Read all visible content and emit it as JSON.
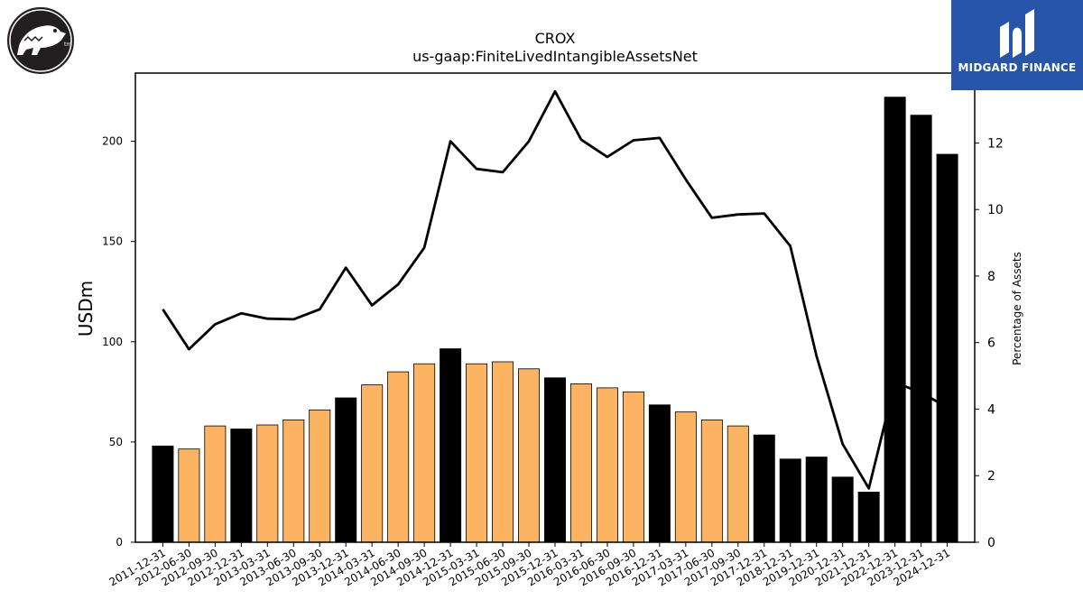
{
  "header": {
    "company": "CROX",
    "metric": "us-gaap:FiniteLivedIntangibleAssetsNet"
  },
  "brand": {
    "name": "MIDGARD FINANCE",
    "color": "#2855a7",
    "logo_left_icon": "crocodile-logo-icon",
    "logo_right_icon": "midgard-m-icon"
  },
  "chart_data": {
    "type": "bar",
    "categories": [
      "2011-12-31",
      "2012-06-30",
      "2012-09-30",
      "2012-12-31",
      "2013-03-31",
      "2013-06-30",
      "2013-09-30",
      "2013-12-31",
      "2014-03-31",
      "2014-06-30",
      "2014-09-30",
      "2014-12-31",
      "2015-03-31",
      "2015-06-30",
      "2015-09-30",
      "2015-12-31",
      "2016-03-31",
      "2016-06-30",
      "2016-09-30",
      "2016-12-31",
      "2017-03-31",
      "2017-06-30",
      "2017-09-30",
      "2017-12-31",
      "2018-12-31",
      "2019-12-31",
      "2020-12-31",
      "2021-12-31",
      "2022-12-31",
      "2023-12-31",
      "2024-12-31"
    ],
    "values": [
      48,
      46.5,
      58,
      56.5,
      58.5,
      61,
      66,
      72,
      78.5,
      85,
      89,
      96.5,
      89,
      90,
      86.5,
      82,
      79,
      77,
      75,
      68.5,
      65,
      61,
      58,
      53.5,
      41.5,
      42.5,
      32.5,
      25,
      222,
      213,
      193.5
    ],
    "bar_colors": [
      "#000000",
      "#fdb462",
      "#fdb462",
      "#000000",
      "#fdb462",
      "#fdb462",
      "#fdb462",
      "#000000",
      "#fdb462",
      "#fdb462",
      "#fdb462",
      "#000000",
      "#fdb462",
      "#fdb462",
      "#fdb462",
      "#000000",
      "#fdb462",
      "#fdb462",
      "#fdb462",
      "#000000",
      "#fdb462",
      "#fdb462",
      "#fdb462",
      "#000000",
      "#000000",
      "#000000",
      "#000000",
      "#000000",
      "#000000",
      "#000000",
      "#000000"
    ],
    "line_series": {
      "axis": "right",
      "values": [
        7.0,
        5.8,
        6.55,
        6.88,
        6.72,
        6.7,
        7.0,
        8.25,
        7.12,
        7.75,
        8.85,
        12.05,
        11.22,
        11.12,
        12.05,
        13.55,
        12.1,
        11.58,
        12.08,
        12.15,
        10.9,
        9.75,
        9.85,
        9.88,
        8.9,
        5.6,
        2.95,
        1.62,
        4.8,
        4.5,
        4.05
      ]
    },
    "ylabel": "USDm",
    "ylabel_right": "Percentage of Assets",
    "ylim": [
      0,
      234
    ],
    "ylim_right": [
      0,
      14.1
    ],
    "yticks": [
      0,
      50,
      100,
      150,
      200
    ],
    "yticks_right": [
      0,
      2,
      4,
      6,
      8,
      10,
      12
    ],
    "grid": false
  }
}
